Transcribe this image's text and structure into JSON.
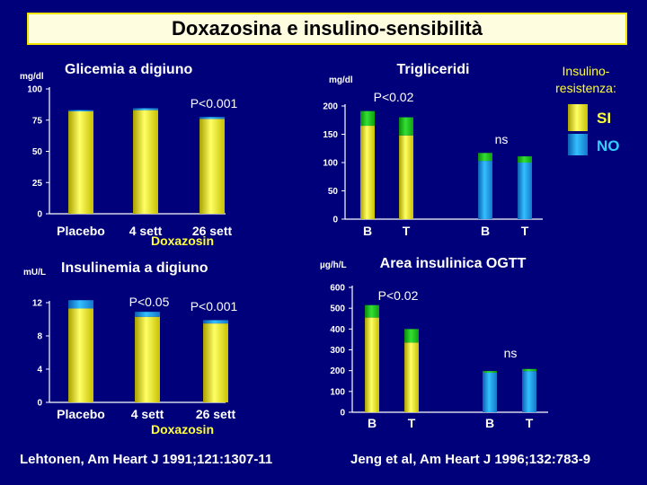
{
  "title": "Doxazosina e insulino-sensibilità",
  "legend": {
    "title_line1": "Insulino-",
    "title_line2": "resistenza:",
    "yes": "SI",
    "no": "NO"
  },
  "colors": {
    "background": "#00007a",
    "yellow": "#f2ec00",
    "green": "#19c419",
    "cyan": "#1f8fe0",
    "label_yellow": "#ffff33"
  },
  "references": {
    "left": "Lehtonen, Am Heart J 1991;121:1307-11",
    "right": "Jeng et al, Am Heart J 1996;132:783-9"
  },
  "chart_data": [
    {
      "type": "bar",
      "title": "Glicemia a digiuno",
      "ylabel": "mg/dl",
      "ylim": [
        0,
        100
      ],
      "yticks": [
        0,
        25,
        50,
        75,
        100
      ],
      "categories": [
        "Placebo",
        "4 sett",
        "26 sett"
      ],
      "group_label": "Doxazosin",
      "series": [
        {
          "name": "SI",
          "values": [
            82,
            83,
            76
          ]
        },
        {
          "name": "NO",
          "values": [
            1,
            1.5,
            1.5
          ]
        }
      ],
      "annotations": [
        {
          "text": "P<0.001",
          "category": "26 sett"
        }
      ]
    },
    {
      "type": "bar",
      "title": "Trigliceridi",
      "ylabel": "mg/dl",
      "ylim": [
        0,
        200
      ],
      "yticks": [
        0,
        50,
        100,
        150,
        200
      ],
      "categories": [
        "B",
        "T",
        "B",
        "T"
      ],
      "series": [
        {
          "name": "SI",
          "values": [
            165,
            148,
            0,
            0
          ]
        },
        {
          "name": "NO",
          "values": [
            0,
            0,
            103,
            100
          ]
        }
      ],
      "stack": [
        {
          "values": [
            26,
            32,
            14,
            11
          ]
        }
      ],
      "annotations": [
        {
          "text": "P<0.02",
          "group": "SI"
        },
        {
          "text": "ns",
          "group": "NO"
        }
      ]
    },
    {
      "type": "bar",
      "title": "Insulinemia a digiuno",
      "ylabel": "mU/L",
      "ylim": [
        0,
        12
      ],
      "yticks": [
        0,
        4,
        8,
        12
      ],
      "categories": [
        "Placebo",
        "4 sett",
        "26 sett"
      ],
      "group_label": "Doxazosin",
      "series": [
        {
          "name": "SI",
          "values": [
            11.3,
            10.3,
            9.5
          ]
        },
        {
          "name": "NO",
          "values": [
            1,
            0.6,
            0.4
          ]
        }
      ],
      "annotations": [
        {
          "text": "P<0.05",
          "category": "4 sett"
        },
        {
          "text": "P<0.001",
          "category": "26 sett"
        }
      ]
    },
    {
      "type": "bar",
      "title": "Area insulinica OGTT",
      "ylabel": "µg/h/L",
      "ylim": [
        0,
        600
      ],
      "yticks": [
        0,
        100,
        200,
        300,
        400,
        500,
        600
      ],
      "categories": [
        "B",
        "T",
        "B",
        "T"
      ],
      "series": [
        {
          "name": "SI",
          "values": [
            455,
            335,
            0,
            0
          ]
        },
        {
          "name": "NO",
          "values": [
            0,
            0,
            190,
            198
          ]
        }
      ],
      "stack": [
        {
          "values": [
            60,
            65,
            8,
            10
          ]
        }
      ],
      "annotations": [
        {
          "text": "P<0.02",
          "group": "SI"
        },
        {
          "text": "ns",
          "group": "NO"
        }
      ]
    }
  ]
}
